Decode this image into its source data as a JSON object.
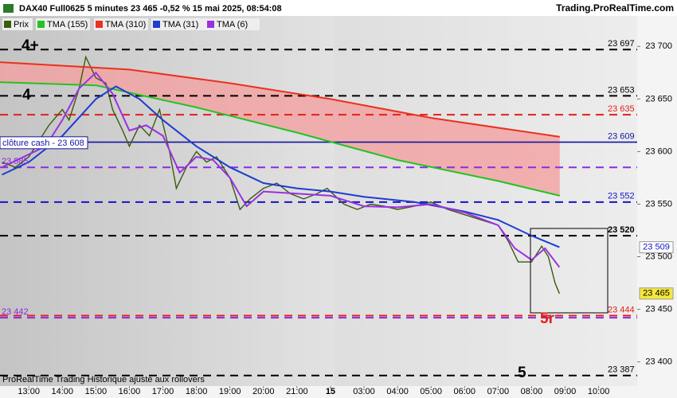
{
  "header": {
    "title": "DAX40 Full0625 5 minutes 23 465 -0,52 % 15 mai 2025, 08:54:08",
    "site": "Trading.ProRealTime.com"
  },
  "footer": "ProRealTime Trading  Historique ajusté aux rollovers",
  "chart_data": {
    "type": "line",
    "xlim": [
      -0.86,
      18.15
    ],
    "ylim": [
      23377,
      23729
    ],
    "xticks": [
      {
        "value": 0,
        "label": "13:00"
      },
      {
        "value": 1,
        "label": "14:00"
      },
      {
        "value": 2,
        "label": "15:00"
      },
      {
        "value": 3,
        "label": "16:00"
      },
      {
        "value": 4,
        "label": "17:00"
      },
      {
        "value": 5,
        "label": "18:00"
      },
      {
        "value": 6,
        "label": "19:00"
      },
      {
        "value": 7,
        "label": "20:00"
      },
      {
        "value": 8,
        "label": "21:00"
      },
      {
        "value": 9,
        "label": "15"
      },
      {
        "value": 10,
        "label": "03:00"
      },
      {
        "value": 11,
        "label": "04:00"
      },
      {
        "value": 12,
        "label": "05:00"
      },
      {
        "value": 13,
        "label": "06:00"
      },
      {
        "value": 14,
        "label": "07:00"
      },
      {
        "value": 15,
        "label": "08:00"
      },
      {
        "value": 16,
        "label": "09:00"
      },
      {
        "value": 17,
        "label": "10:00"
      }
    ],
    "yticks": [
      {
        "value": 23400,
        "label": "23 400"
      },
      {
        "value": 23450,
        "label": "23 450"
      },
      {
        "value": 23500,
        "label": "23 500"
      },
      {
        "value": 23550,
        "label": "23 550"
      },
      {
        "value": 23600,
        "label": "23 600"
      },
      {
        "value": 23650,
        "label": "23 650"
      },
      {
        "value": 23700,
        "label": "23 700"
      }
    ],
    "series": [
      {
        "name": "Prix",
        "color": "#3a5a10",
        "x": [
          -0.8,
          -0.4,
          0,
          0.3,
          0.6,
          1.0,
          1.2,
          1.5,
          1.7,
          2.0,
          2.3,
          2.5,
          2.8,
          3.0,
          3.3,
          3.6,
          3.9,
          4.2,
          4.4,
          4.7,
          5.0,
          5.3,
          5.6,
          6.0,
          6.3,
          6.6,
          7.0,
          7.4,
          7.8,
          8.2,
          8.6,
          8.9,
          9.4,
          9.8,
          10.2,
          10.6,
          11.0,
          11.5,
          12.0,
          12.5,
          13.0,
          13.5,
          14.0,
          14.3,
          14.6,
          15.0,
          15.3,
          15.5,
          15.7,
          15.83
        ],
        "values": [
          23590,
          23585,
          23595,
          23610,
          23625,
          23640,
          23630,
          23660,
          23690,
          23670,
          23665,
          23640,
          23620,
          23605,
          23625,
          23615,
          23640,
          23600,
          23565,
          23585,
          23600,
          23590,
          23595,
          23575,
          23545,
          23555,
          23565,
          23570,
          23560,
          23555,
          23560,
          23565,
          23550,
          23545,
          23550,
          23548,
          23545,
          23548,
          23552,
          23545,
          23540,
          23535,
          23530,
          23515,
          23495,
          23495,
          23510,
          23500,
          23475,
          23465
        ]
      },
      {
        "name": "TMA (155)",
        "color": "#22c322",
        "x": [
          -0.86,
          2,
          5,
          8,
          11,
          14,
          15.84
        ],
        "values": [
          23666,
          23663,
          23642,
          23618,
          23592,
          23572,
          23558
        ]
      },
      {
        "name": "TMA (310)",
        "color": "#e8321e",
        "x": [
          -0.86,
          3,
          6,
          9,
          12,
          15.84
        ],
        "values": [
          23685,
          23678,
          23665,
          23650,
          23632,
          23614
        ]
      },
      {
        "name": "TMA (31)",
        "color": "#1e3cd0",
        "x": [
          -0.8,
          0,
          1,
          2,
          2.6,
          3.3,
          4,
          5,
          6,
          7,
          8,
          9,
          10,
          11.5,
          13,
          14,
          15,
          15.83
        ],
        "values": [
          23578,
          23590,
          23615,
          23650,
          23662,
          23650,
          23630,
          23605,
          23585,
          23570,
          23565,
          23562,
          23557,
          23552,
          23543,
          23535,
          23520,
          23509
        ]
      },
      {
        "name": "TMA (6)",
        "color": "#9b30e0",
        "x": [
          -0.8,
          0.5,
          1.0,
          1.5,
          2.0,
          2.5,
          3.0,
          3.5,
          4.0,
          4.5,
          5.0,
          5.5,
          6.0,
          6.5,
          7.0,
          8.0,
          9.0,
          10.0,
          11.0,
          12.0,
          13.0,
          14.0,
          14.5,
          15.0,
          15.4,
          15.83
        ],
        "values": [
          23585,
          23605,
          23630,
          23660,
          23675,
          23655,
          23620,
          23625,
          23615,
          23580,
          23595,
          23592,
          23575,
          23548,
          23562,
          23560,
          23558,
          23548,
          23547,
          23550,
          23542,
          23530,
          23508,
          23497,
          23508,
          23490
        ]
      }
    ],
    "levels": [
      {
        "value": 23697,
        "label": "23 697",
        "color": "#000000",
        "side": "right"
      },
      {
        "value": 23653,
        "label": "23 653",
        "color": "#000000",
        "side": "right"
      },
      {
        "value": 23635,
        "label": "23 635",
        "color": "#e0201b",
        "side": "right"
      },
      {
        "value": 23609,
        "label": "23 609",
        "color": "#1414a0",
        "side": "right",
        "solid": true
      },
      {
        "value": 23585,
        "label": "23 585",
        "color": "#8a2be2",
        "side": "left"
      },
      {
        "value": 23552,
        "label": "23 552",
        "color": "#1414c8",
        "side": "right"
      },
      {
        "value": 23520,
        "label": "23 520",
        "color": "#000000",
        "side": "right",
        "bold": true
      },
      {
        "value": 23444,
        "label": "23 444",
        "color": "#e0201b",
        "side": "right"
      },
      {
        "value": 23442,
        "label": "23 442",
        "color": "#8a2be2",
        "side": "left"
      },
      {
        "value": 23387,
        "label": "23 387",
        "color": "#000000",
        "side": "right"
      }
    ],
    "close_note": {
      "value": 23608,
      "label": "clôture cash -  23 608"
    },
    "price_tags": [
      {
        "value": 23509,
        "label": "23 509",
        "color": "#ffffff",
        "text_color": "#1414c8"
      },
      {
        "value": 23465,
        "label": "23 465",
        "color": "#f5e83a",
        "text_color": "#000000"
      }
    ],
    "annotations": [
      "4+",
      "4",
      "5r",
      "5"
    ]
  }
}
